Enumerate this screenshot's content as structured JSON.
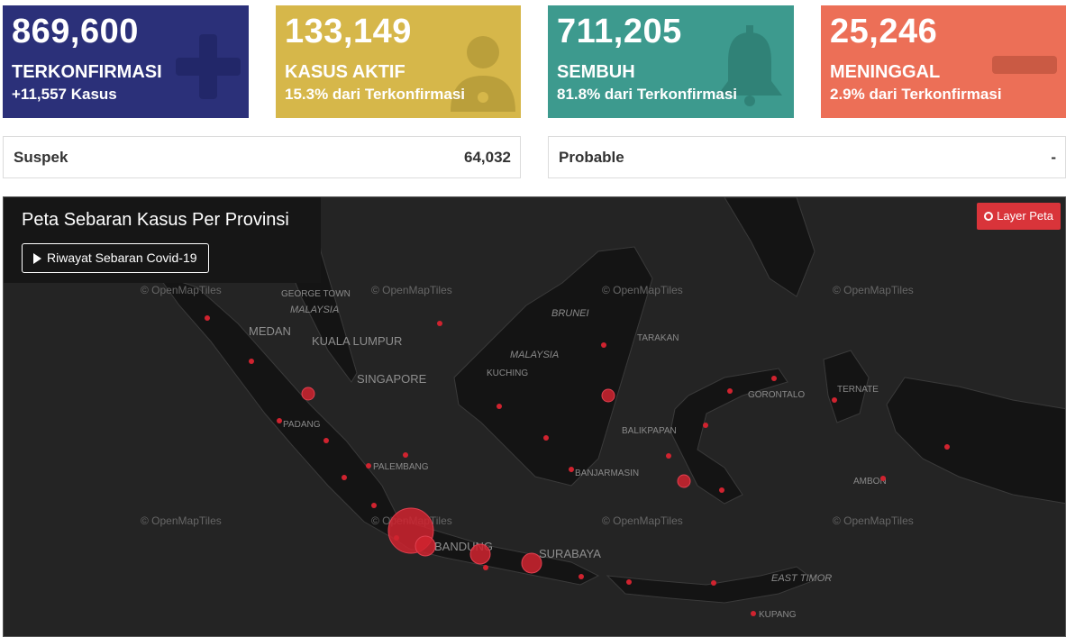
{
  "cards": {
    "confirmed": {
      "value": "869,600",
      "label": "TERKONFIRMASI",
      "sub": "+11,557 Kasus",
      "color": "#2b3079",
      "icon": "plus-icon"
    },
    "active": {
      "value": "133,149",
      "label": "KASUS AKTIF",
      "sub": "15.3% dari Terkonfirmasi",
      "color": "#d6b74a",
      "icon": "doctor-icon"
    },
    "recovered": {
      "value": "711,205",
      "label": "SEMBUH",
      "sub": "81.8% dari Terkonfirmasi",
      "color": "#3d9a8e",
      "icon": "bell-icon"
    },
    "deaths": {
      "value": "25,246",
      "label": "MENINGGAL",
      "sub": "2.9% dari Terkonfirmasi",
      "color": "#ec6f57",
      "icon": "minus-icon"
    }
  },
  "info": {
    "suspect": {
      "label": "Suspek",
      "value": "64,032"
    },
    "probable": {
      "label": "Probable",
      "value": "-"
    }
  },
  "map": {
    "title": "Peta Sebaran Kasus Per Provinsi",
    "history_button": "Riwayat Sebaran Covid-19",
    "layer_button": "Layer Peta",
    "attribution": "© OpenMapTiles",
    "labels": {
      "george_town": "GEORGE TOWN",
      "malaysia_w": "MALAYSIA",
      "medan": "MEDAN",
      "kuala_lumpur": "KUALA LUMPUR",
      "singapore": "SINGAPORE",
      "padang": "PADANG",
      "palembang": "PALEMBANG",
      "brunei": "BRUNEI",
      "malaysia_e": "MALAYSIA",
      "kuching": "KUCHING",
      "tarakan": "TARAKAN",
      "balikpapan": "BALIKPAPAN",
      "banjarmasin": "BANJARMASIN",
      "bandung": "BANDUNG",
      "surabaya": "SURABAYA",
      "gorontalo": "GORONTALO",
      "ternate": "TERNATE",
      "ambon": "AMBON",
      "east_timor": "EAST TIMOR",
      "kupang": "KUPANG"
    },
    "accent": "#d0232f"
  }
}
